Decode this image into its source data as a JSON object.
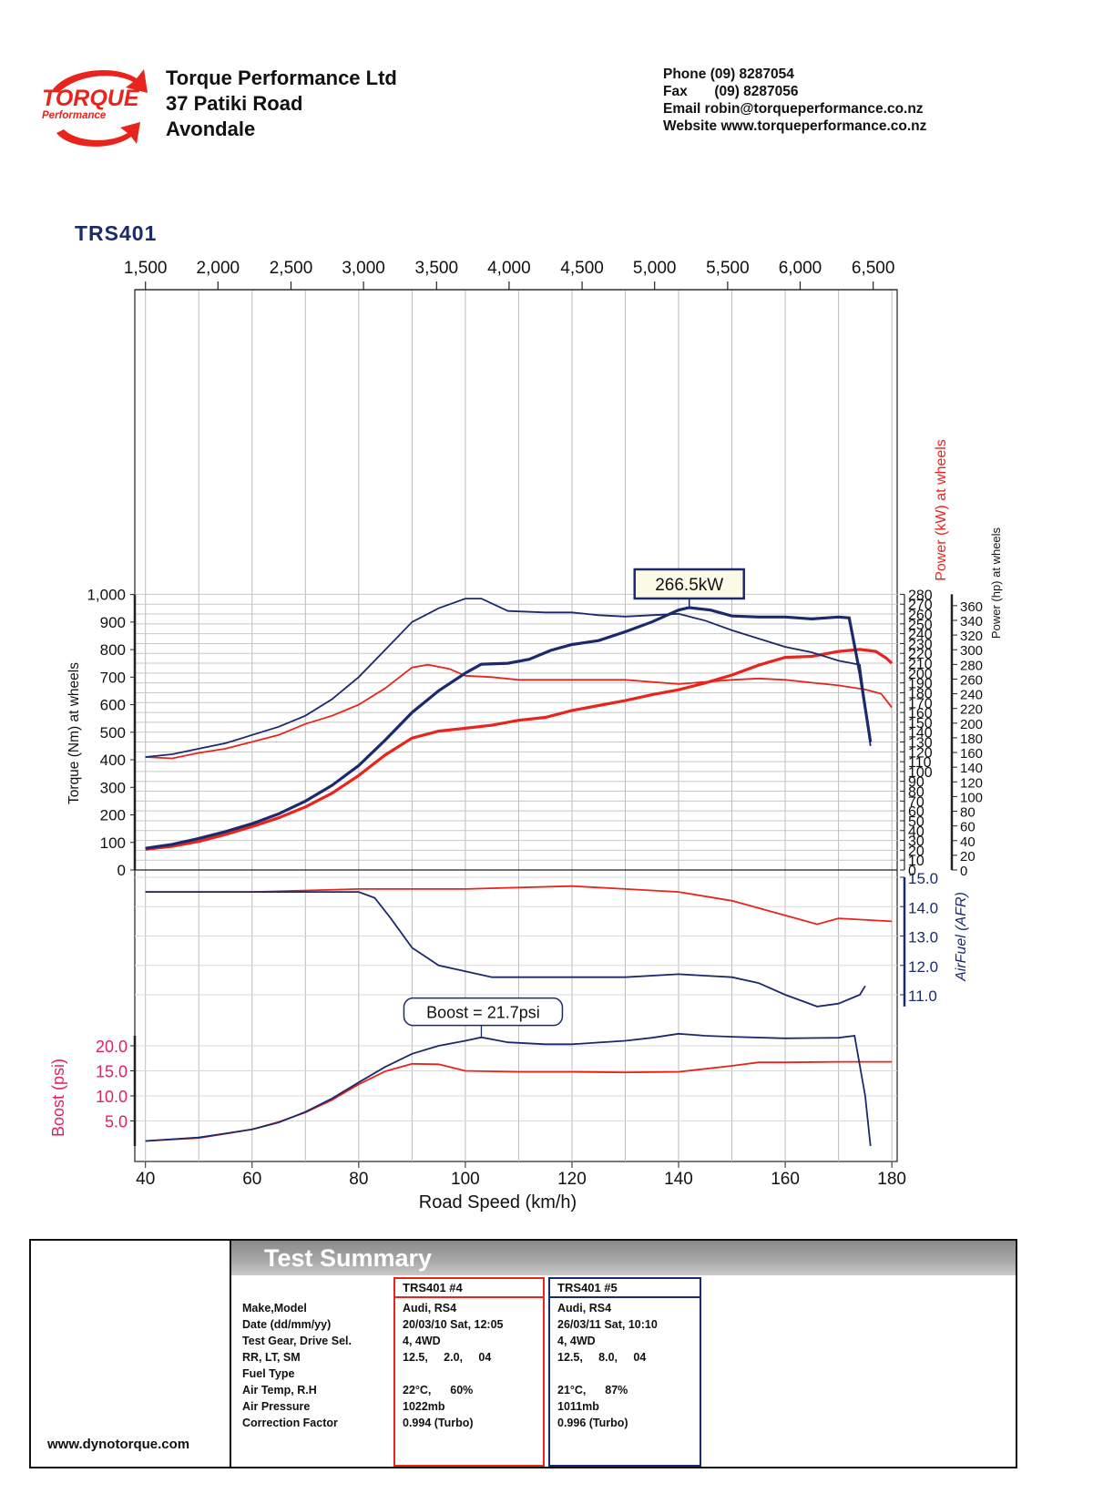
{
  "header": {
    "logo_text": "TORQUE",
    "logo_sub": "Performance",
    "company": "Torque Performance Ltd",
    "address1": "37 Patiki Road",
    "address2": "Avondale",
    "phone_label": "Phone",
    "phone": "(09) 8287054",
    "fax_label": "Fax",
    "fax": "(09) 8287056",
    "email_label": "Email",
    "email": "robin@torqueperformance.co.nz",
    "website_label": "Website",
    "website": "www.torqueperformance.co.nz"
  },
  "report_id": "TRS401",
  "colors": {
    "run4": "#e8241c",
    "run5": "#1a2a6c",
    "boost_label": "#e0206a"
  },
  "chart_data": {
    "type": "line",
    "x_label": "Road Speed (km/h)",
    "x_ticks": [
      40,
      60,
      80,
      100,
      120,
      140,
      160,
      180
    ],
    "x_range": [
      38,
      181
    ],
    "rpm_axis": {
      "labels": [
        "1,500",
        "2,000",
        "2,500",
        "3,000",
        "3,500",
        "4,000",
        "4,500",
        "5,000",
        "5,500",
        "6,000",
        "6,500"
      ],
      "speeds": [
        40,
        53.6,
        67.3,
        80.9,
        94.6,
        108.2,
        121.9,
        135.5,
        149.2,
        162.8,
        176.5
      ]
    },
    "torque_axis": {
      "label": "Torque (Nm) at wheels",
      "ticks": [
        0,
        100,
        200,
        300,
        400,
        500,
        600,
        700,
        800,
        900,
        1000
      ],
      "tick_labels": [
        "0",
        "100",
        "200",
        "300",
        "400",
        "500",
        "600",
        "700",
        "800",
        "900",
        "1,000"
      ],
      "range": [
        0,
        1000
      ]
    },
    "power_kw_axis": {
      "label": "Power (kW) at wheels",
      "ticks": [
        0,
        10,
        20,
        30,
        40,
        50,
        60,
        70,
        80,
        90,
        100,
        110,
        120,
        130,
        140,
        150,
        160,
        170,
        180,
        190,
        200,
        210,
        220,
        230,
        240,
        250,
        260,
        270,
        280
      ],
      "range": [
        0,
        280
      ]
    },
    "power_hp_axis": {
      "label": "Power (hp) at wheels",
      "ticks": [
        0,
        20,
        40,
        60,
        80,
        100,
        120,
        140,
        160,
        180,
        200,
        220,
        240,
        260,
        280,
        300,
        320,
        340,
        360
      ]
    },
    "afr_axis": {
      "label": "AirFuel (AFR)",
      "ticks": [
        "15.0",
        "14.0",
        "13.0",
        "12.0",
        "11.0"
      ],
      "range": [
        10.5,
        15.0
      ]
    },
    "boost_axis": {
      "label": "Boost (psi)",
      "ticks": [
        "20.0",
        "15.0",
        "10.0",
        "5.0"
      ],
      "range": [
        0,
        24
      ]
    },
    "annotations": {
      "peak_power": "266.5kW",
      "peak_boost": "Boost = 21.7psi"
    },
    "series": [
      {
        "name": "TRS401 #4",
        "color": "#e8241c",
        "power_kw": [
          [
            40,
            21
          ],
          [
            45,
            24
          ],
          [
            50,
            29
          ],
          [
            55,
            36
          ],
          [
            60,
            44
          ],
          [
            65,
            53
          ],
          [
            70,
            64
          ],
          [
            75,
            78
          ],
          [
            80,
            96
          ],
          [
            85,
            117
          ],
          [
            90,
            134
          ],
          [
            95,
            141
          ],
          [
            100,
            144
          ],
          [
            105,
            147
          ],
          [
            110,
            152
          ],
          [
            115,
            155
          ],
          [
            120,
            162
          ],
          [
            125,
            167
          ],
          [
            130,
            172
          ],
          [
            135,
            178
          ],
          [
            140,
            183
          ],
          [
            145,
            190
          ],
          [
            150,
            198
          ],
          [
            155,
            208
          ],
          [
            160,
            216
          ],
          [
            165,
            217
          ],
          [
            170,
            222
          ],
          [
            174,
            224
          ],
          [
            177,
            222
          ],
          [
            179,
            215
          ],
          [
            180,
            210
          ]
        ],
        "torque": [
          [
            40,
            410
          ],
          [
            45,
            405
          ],
          [
            50,
            425
          ],
          [
            55,
            440
          ],
          [
            60,
            465
          ],
          [
            65,
            490
          ],
          [
            70,
            530
          ],
          [
            75,
            560
          ],
          [
            80,
            600
          ],
          [
            85,
            660
          ],
          [
            90,
            735
          ],
          [
            93,
            745
          ],
          [
            97,
            730
          ],
          [
            100,
            705
          ],
          [
            105,
            700
          ],
          [
            110,
            690
          ],
          [
            120,
            690
          ],
          [
            130,
            690
          ],
          [
            140,
            675
          ],
          [
            150,
            690
          ],
          [
            155,
            695
          ],
          [
            160,
            690
          ],
          [
            165,
            680
          ],
          [
            170,
            670
          ],
          [
            175,
            655
          ],
          [
            178,
            640
          ],
          [
            180,
            590
          ]
        ],
        "afr": [
          [
            40,
            14.5
          ],
          [
            60,
            14.5
          ],
          [
            80,
            14.6
          ],
          [
            90,
            14.6
          ],
          [
            100,
            14.6
          ],
          [
            120,
            14.7
          ],
          [
            130,
            14.6
          ],
          [
            140,
            14.5
          ],
          [
            150,
            14.2
          ],
          [
            160,
            13.7
          ],
          [
            166,
            13.4
          ],
          [
            170,
            13.6
          ],
          [
            180,
            13.5
          ]
        ],
        "boost": [
          [
            40,
            1.0
          ],
          [
            50,
            1.6
          ],
          [
            60,
            3.3
          ],
          [
            65,
            4.8
          ],
          [
            70,
            6.7
          ],
          [
            75,
            9.2
          ],
          [
            80,
            12.3
          ],
          [
            85,
            14.9
          ],
          [
            90,
            16.4
          ],
          [
            95,
            16.3
          ],
          [
            100,
            15.0
          ],
          [
            110,
            14.8
          ],
          [
            120,
            14.8
          ],
          [
            130,
            14.7
          ],
          [
            140,
            14.8
          ],
          [
            145,
            15.4
          ],
          [
            150,
            16.0
          ],
          [
            155,
            16.7
          ],
          [
            160,
            16.7
          ],
          [
            170,
            16.8
          ],
          [
            180,
            16.8
          ]
        ]
      },
      {
        "name": "TRS401 #5",
        "color": "#1a2a6c",
        "power_kw": [
          [
            40,
            22
          ],
          [
            45,
            26
          ],
          [
            50,
            32
          ],
          [
            55,
            39
          ],
          [
            60,
            47
          ],
          [
            65,
            57
          ],
          [
            70,
            70
          ],
          [
            75,
            86
          ],
          [
            80,
            106
          ],
          [
            85,
            132
          ],
          [
            90,
            160
          ],
          [
            95,
            182
          ],
          [
            100,
            200
          ],
          [
            103,
            209
          ],
          [
            108,
            210
          ],
          [
            112,
            214
          ],
          [
            116,
            223
          ],
          [
            120,
            229
          ],
          [
            125,
            233
          ],
          [
            130,
            242
          ],
          [
            135,
            252
          ],
          [
            140,
            264
          ],
          [
            142,
            266.5
          ],
          [
            146,
            264
          ],
          [
            150,
            258
          ],
          [
            155,
            257
          ],
          [
            160,
            257
          ],
          [
            165,
            255
          ],
          [
            170,
            257
          ],
          [
            172,
            256
          ],
          [
            174,
            200
          ],
          [
            176,
            130
          ]
        ],
        "torque": [
          [
            40,
            410
          ],
          [
            45,
            420
          ],
          [
            50,
            440
          ],
          [
            55,
            460
          ],
          [
            60,
            490
          ],
          [
            65,
            520
          ],
          [
            70,
            560
          ],
          [
            75,
            620
          ],
          [
            80,
            700
          ],
          [
            85,
            800
          ],
          [
            90,
            900
          ],
          [
            95,
            950
          ],
          [
            100,
            985
          ],
          [
            103,
            985
          ],
          [
            108,
            940
          ],
          [
            115,
            935
          ],
          [
            120,
            935
          ],
          [
            125,
            925
          ],
          [
            130,
            920
          ],
          [
            135,
            925
          ],
          [
            140,
            930
          ],
          [
            145,
            905
          ],
          [
            150,
            870
          ],
          [
            155,
            840
          ],
          [
            160,
            810
          ],
          [
            165,
            790
          ],
          [
            170,
            760
          ],
          [
            174,
            745
          ],
          [
            176,
            450
          ]
        ],
        "afr": [
          [
            40,
            14.5
          ],
          [
            60,
            14.5
          ],
          [
            80,
            14.5
          ],
          [
            83,
            14.3
          ],
          [
            86,
            13.6
          ],
          [
            90,
            12.6
          ],
          [
            95,
            12.0
          ],
          [
            100,
            11.8
          ],
          [
            105,
            11.6
          ],
          [
            110,
            11.6
          ],
          [
            120,
            11.6
          ],
          [
            130,
            11.6
          ],
          [
            140,
            11.7
          ],
          [
            150,
            11.6
          ],
          [
            155,
            11.4
          ],
          [
            160,
            11.0
          ],
          [
            166,
            10.6
          ],
          [
            170,
            10.7
          ],
          [
            174,
            11.0
          ],
          [
            175,
            11.3
          ]
        ],
        "boost": [
          [
            40,
            1.0
          ],
          [
            50,
            1.7
          ],
          [
            60,
            3.3
          ],
          [
            65,
            4.7
          ],
          [
            70,
            6.8
          ],
          [
            75,
            9.5
          ],
          [
            80,
            12.7
          ],
          [
            85,
            15.8
          ],
          [
            90,
            18.4
          ],
          [
            95,
            20.0
          ],
          [
            100,
            21.0
          ],
          [
            103,
            21.7
          ],
          [
            108,
            20.7
          ],
          [
            115,
            20.3
          ],
          [
            120,
            20.3
          ],
          [
            130,
            21.0
          ],
          [
            135,
            21.6
          ],
          [
            140,
            22.4
          ],
          [
            145,
            22.0
          ],
          [
            150,
            21.8
          ],
          [
            160,
            21.5
          ],
          [
            170,
            21.6
          ],
          [
            173,
            22.0
          ],
          [
            175,
            10.0
          ],
          [
            176,
            0
          ]
        ]
      }
    ]
  },
  "summary": {
    "title": "Test Summary",
    "site": "www.dynotorque.com",
    "rows": [
      "Make,Model",
      "Date (dd/mm/yy)",
      "Test Gear, Drive Sel.",
      "RR, LT, SM",
      "Fuel Type",
      "Air Temp, R.H",
      "Air Pressure",
      "Correction Factor"
    ],
    "run4": {
      "header": "TRS401   #4",
      "values": [
        "Audi, RS4",
        "20/03/10 Sat, 12:05",
        "4, 4WD",
        "12.5,     2.0,     04",
        "",
        "22°C,      60%",
        "1022mb",
        "0.994 (Turbo)"
      ]
    },
    "run5": {
      "header": "TRS401   #5",
      "values": [
        "Audi, RS4",
        "26/03/11 Sat, 10:10",
        "4, 4WD",
        "12.5,     8.0,     04",
        "",
        "21°C,      87%",
        "1011mb",
        "0.996 (Turbo)"
      ]
    }
  }
}
